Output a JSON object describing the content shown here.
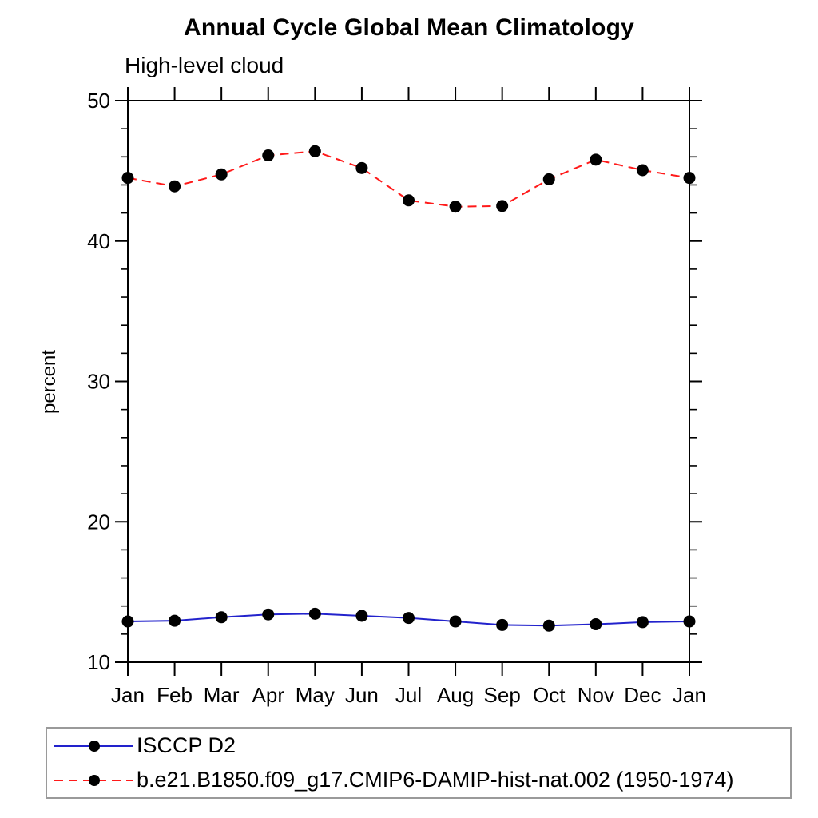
{
  "chart_data": {
    "type": "line",
    "title": "Annual Cycle Global Mean Climatology",
    "subtitle": "High-level cloud",
    "ylabel": "percent",
    "x_categories": [
      "Jan",
      "Feb",
      "Mar",
      "Apr",
      "May",
      "Jun",
      "Jul",
      "Aug",
      "Sep",
      "Oct",
      "Nov",
      "Dec",
      "Jan"
    ],
    "ylim": [
      10,
      50
    ],
    "ytick_step": 10,
    "ytick_minor_step": 2,
    "grid": "off",
    "legend_position": "bottom-left-box",
    "axis_color": "#000000",
    "series": [
      {
        "name": "ISCCP D2",
        "color": "#2222cc",
        "line_style": "solid",
        "marker": "filled-circle",
        "marker_color": "#000000",
        "values": [
          12.9,
          12.95,
          13.2,
          13.4,
          13.45,
          13.3,
          13.15,
          12.9,
          12.65,
          12.6,
          12.7,
          12.85,
          12.9
        ]
      },
      {
        "name": "b.e21.B1850.f09_g17.CMIP6-DAMIP-hist-nat.002 (1950-1974)",
        "color": "#ff1a1a",
        "line_style": "dashed",
        "marker": "filled-circle",
        "marker_color": "#000000",
        "values": [
          44.5,
          43.9,
          44.75,
          46.1,
          46.4,
          45.2,
          42.9,
          42.45,
          42.5,
          44.4,
          45.8,
          45.05,
          44.5
        ]
      }
    ]
  }
}
